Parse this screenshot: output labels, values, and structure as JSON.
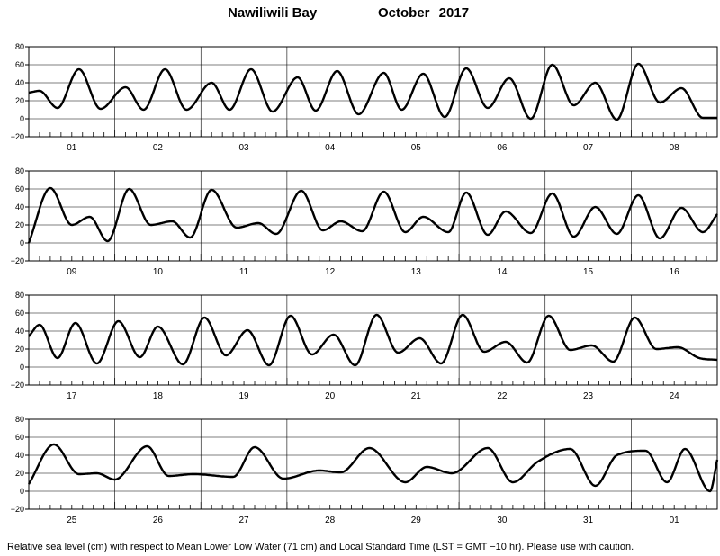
{
  "title": {
    "station": "Nawiliwili Bay",
    "period": "October   2017"
  },
  "footer": "Relative sea level (cm) with respect to Mean Lower Low Water (71 cm) and Local Standard Time (LST = GMT −10 hr). Please use with caution.",
  "chart_data": {
    "type": "line",
    "title": "Nawiliwili Bay October 2017",
    "ylabel": "Relative sea level (cm)",
    "ylim": [
      -20,
      80
    ],
    "yticks": [
      -20,
      0,
      20,
      40,
      60,
      80
    ],
    "grid": true,
    "rows": [
      {
        "days": [
          "01",
          "02",
          "03",
          "04",
          "05",
          "06",
          "07",
          "08"
        ],
        "x_hours": [
          0,
          3,
          8,
          14,
          20,
          27,
          32,
          38,
          44,
          51,
          56,
          62,
          68,
          75,
          80,
          86,
          92,
          99,
          104,
          110,
          116,
          122,
          128,
          134,
          140,
          146,
          152,
          158,
          164,
          170,
          176,
          182,
          188,
          192
        ],
        "y_cm": [
          29,
          31,
          12,
          55,
          11,
          35,
          10,
          55,
          10,
          40,
          10,
          55,
          8,
          46,
          9,
          53,
          5,
          51,
          10,
          50,
          2,
          56,
          12,
          45,
          0,
          60,
          15,
          40,
          -1,
          61,
          18,
          34,
          1,
          1
        ]
      },
      {
        "days": [
          "09",
          "10",
          "11",
          "12",
          "13",
          "14",
          "15",
          "16"
        ],
        "x_hours": [
          0,
          6,
          12,
          17,
          22,
          28,
          34,
          40,
          45,
          51,
          58,
          64,
          69,
          76,
          82,
          87,
          93,
          99,
          105,
          110,
          117,
          122,
          128,
          133,
          140,
          146,
          152,
          158,
          164,
          170,
          176,
          182,
          188,
          192
        ],
        "y_cm": [
          0,
          61,
          20,
          29,
          2,
          60,
          20,
          24,
          6,
          59,
          17,
          22,
          10,
          58,
          14,
          24,
          13,
          57,
          12,
          29,
          12,
          56,
          9,
          35,
          11,
          55,
          7,
          40,
          10,
          53,
          5,
          39,
          12,
          32
        ]
      },
      {
        "days": [
          "17",
          "18",
          "19",
          "20",
          "21",
          "22",
          "23",
          "24"
        ],
        "x_hours": [
          0,
          3,
          8,
          13,
          19,
          25,
          31,
          36,
          43,
          49,
          55,
          61,
          67,
          73,
          79,
          85,
          91,
          97,
          103,
          109,
          115,
          121,
          127,
          133,
          139,
          145,
          151,
          157,
          163,
          169,
          175,
          181,
          187,
          192
        ],
        "y_cm": [
          34,
          47,
          10,
          49,
          4,
          51,
          11,
          45,
          3,
          55,
          13,
          41,
          2,
          57,
          14,
          36,
          2,
          58,
          16,
          32,
          4,
          58,
          17,
          28,
          5,
          57,
          19,
          24,
          6,
          55,
          20,
          22,
          10,
          8
        ]
      },
      {
        "days": [
          "25",
          "26",
          "27",
          "28",
          "29",
          "30",
          "31",
          "01"
        ],
        "x_hours": [
          0,
          7,
          14,
          19,
          24,
          33,
          39,
          46,
          57,
          63,
          71,
          81,
          87,
          95,
          105,
          111,
          118,
          128,
          135,
          142,
          151,
          158,
          164,
          172,
          178,
          183,
          190,
          192
        ],
        "y_cm": [
          8,
          52,
          19,
          20,
          13,
          50,
          17,
          19,
          16,
          49,
          14,
          23,
          21,
          48,
          10,
          27,
          20,
          48,
          10,
          33,
          47,
          6,
          40,
          45,
          10,
          47,
          0,
          35
        ]
      }
    ]
  }
}
